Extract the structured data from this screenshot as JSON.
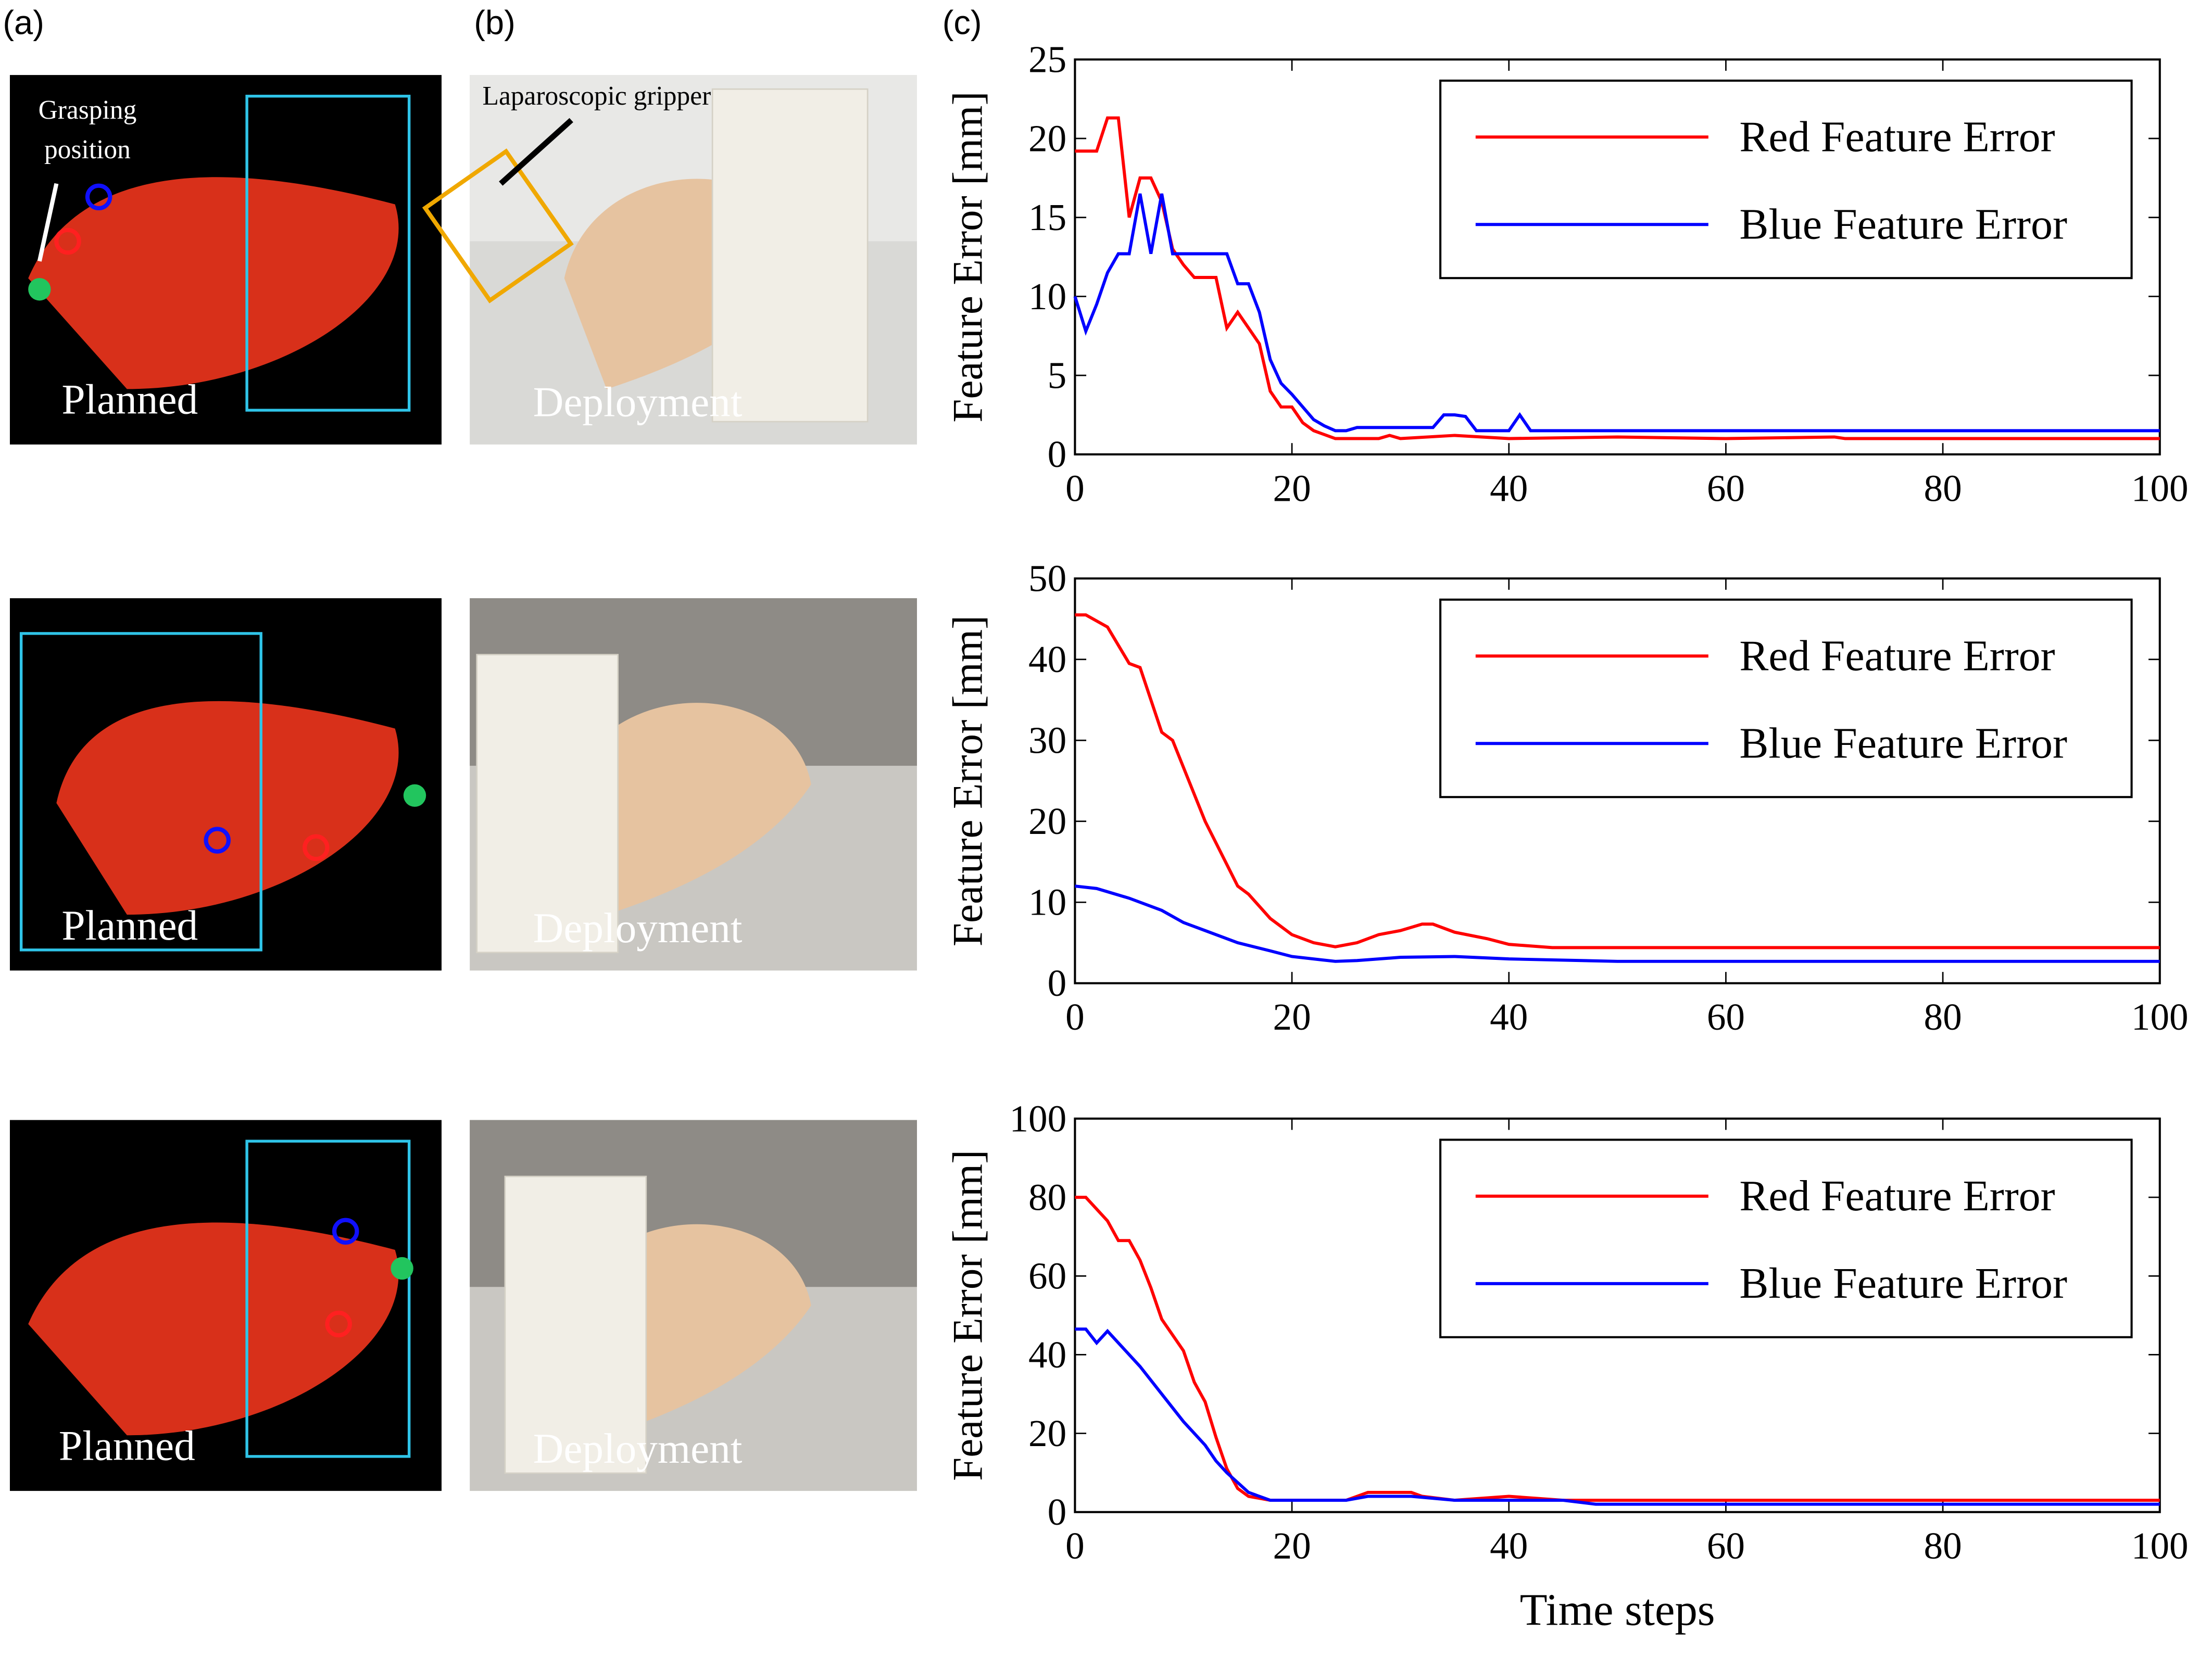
{
  "panels": {
    "labels": [
      "(a)",
      "(b)",
      "(c)"
    ],
    "gripper": "Laparoscopic gripper",
    "grasp": [
      "Grasping",
      "position"
    ],
    "rows": [
      {
        "planned": "Planned",
        "deployment": "Deployment"
      },
      {
        "planned": "Planned",
        "deployment": "Deployment"
      },
      {
        "planned": "Planned",
        "deployment": "Deployment"
      }
    ]
  },
  "chart_data": [
    {
      "type": "line",
      "ylabel": "Feature Error [mm]",
      "xlim": [
        0,
        100
      ],
      "ylim": [
        0,
        25
      ],
      "xticks": [
        0,
        20,
        40,
        60,
        80,
        100
      ],
      "yticks": [
        0,
        5,
        10,
        15,
        20,
        25
      ],
      "legend": "upper right",
      "series": [
        {
          "name": "Red Feature Error",
          "color": "#ff0000",
          "x": [
            0,
            2,
            3,
            4,
            5,
            6,
            7,
            8,
            9,
            10,
            11,
            13,
            14,
            15,
            16,
            17,
            18,
            19,
            20,
            21,
            22,
            24,
            28,
            29,
            30,
            35,
            40,
            50,
            60,
            70,
            71,
            100
          ],
          "values": [
            19.2,
            19.2,
            21.3,
            21.3,
            15,
            17.5,
            17.5,
            16,
            13,
            12,
            11.2,
            11.2,
            8,
            9,
            8,
            7,
            4,
            3,
            3,
            2,
            1.5,
            1,
            1,
            1.2,
            1,
            1.2,
            1,
            1.1,
            1,
            1.1,
            1,
            1
          ]
        },
        {
          "name": "Blue Feature Error",
          "color": "#0000ff",
          "x": [
            0,
            1,
            2,
            3,
            4,
            5,
            6,
            7,
            8,
            9,
            10,
            14,
            15,
            16,
            17,
            18,
            19,
            20,
            21,
            22,
            23,
            24,
            25,
            26,
            33,
            34,
            35,
            36,
            37,
            40,
            41,
            42,
            100
          ],
          "values": [
            10,
            7.8,
            9.5,
            11.5,
            12.7,
            12.7,
            16.5,
            12.7,
            16.5,
            12.7,
            12.7,
            12.7,
            10.8,
            10.8,
            9,
            6,
            4.5,
            3.8,
            3,
            2.2,
            1.8,
            1.5,
            1.5,
            1.7,
            1.7,
            2.5,
            2.5,
            2.4,
            1.5,
            1.5,
            2.5,
            1.5,
            1.5
          ]
        }
      ]
    },
    {
      "type": "line",
      "ylabel": "Feature Error [mm]",
      "xlim": [
        0,
        100
      ],
      "ylim": [
        0,
        50
      ],
      "xticks": [
        0,
        20,
        40,
        60,
        80,
        100
      ],
      "yticks": [
        0,
        10,
        20,
        30,
        40,
        50
      ],
      "legend": "upper right",
      "series": [
        {
          "name": "Red Feature Error",
          "color": "#ff0000",
          "x": [
            0,
            1,
            3,
            5,
            6,
            8,
            9,
            12,
            15,
            16,
            18,
            20,
            22,
            24,
            26,
            28,
            30,
            32,
            33,
            35,
            38,
            40,
            44,
            60,
            100
          ],
          "values": [
            45.5,
            45.5,
            44,
            39.5,
            39,
            31,
            30,
            20,
            12,
            11,
            8,
            6,
            5,
            4.5,
            5,
            6,
            6.5,
            7.3,
            7.3,
            6.3,
            5.5,
            4.8,
            4.4,
            4.4,
            4.4
          ]
        },
        {
          "name": "Blue Feature Error",
          "color": "#0000ff",
          "x": [
            0,
            2,
            5,
            8,
            10,
            12,
            15,
            18,
            20,
            24,
            26,
            30,
            35,
            40,
            50,
            100
          ],
          "values": [
            12,
            11.7,
            10.5,
            9,
            7.5,
            6.5,
            5,
            4,
            3.3,
            2.7,
            2.8,
            3.2,
            3.3,
            3,
            2.7,
            2.7
          ]
        }
      ]
    },
    {
      "type": "line",
      "ylabel": "Feature Error [mm]",
      "xlabel": "Time steps",
      "xlim": [
        0,
        100
      ],
      "ylim": [
        0,
        100
      ],
      "xticks": [
        0,
        20,
        40,
        60,
        80,
        100
      ],
      "yticks": [
        0,
        20,
        40,
        60,
        80,
        100
      ],
      "legend": "upper right",
      "series": [
        {
          "name": "Red Feature Error",
          "color": "#ff0000",
          "x": [
            0,
            1,
            3,
            4,
            5,
            6,
            7,
            8,
            9,
            10,
            11,
            12,
            13,
            14,
            15,
            16,
            18,
            25,
            26,
            27,
            31,
            32,
            35,
            40,
            45,
            60,
            100
          ],
          "values": [
            80,
            80,
            74,
            69,
            69,
            64,
            57,
            49,
            45,
            41,
            33,
            28,
            19,
            11,
            6,
            4,
            3,
            3,
            4,
            5,
            5,
            4,
            3,
            4,
            3,
            3,
            3
          ]
        },
        {
          "name": "Blue Feature Error",
          "color": "#0000ff",
          "x": [
            0,
            1,
            2,
            3,
            4,
            6,
            8,
            10,
            12,
            13,
            14,
            16,
            17,
            18,
            25,
            27,
            31,
            35,
            40,
            45,
            48,
            60,
            100
          ],
          "values": [
            46.5,
            46.5,
            43,
            46,
            43,
            37,
            30,
            23,
            17,
            13,
            10,
            5,
            4,
            3,
            3,
            4,
            4,
            3,
            3,
            3,
            2,
            2,
            2
          ]
        }
      ]
    }
  ]
}
